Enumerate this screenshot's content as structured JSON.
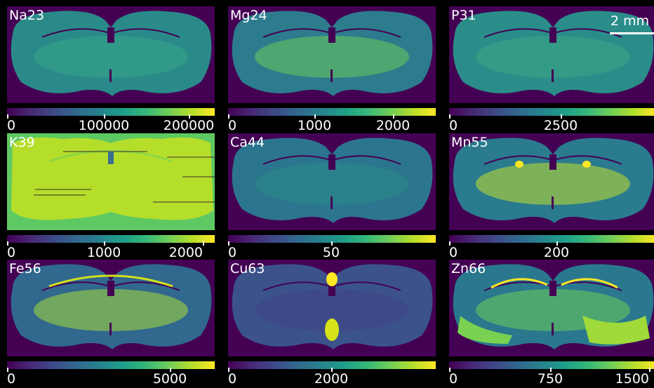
{
  "scale_bar": {
    "label": "2 mm"
  },
  "colormap": "viridis",
  "panels": [
    {
      "element": "Na23",
      "ticks": [
        {
          "label": "0",
          "frac": 0.0
        },
        {
          "label": "100000",
          "frac": 0.47
        },
        {
          "label": "200000",
          "frac": 0.88
        }
      ]
    },
    {
      "element": "Mg24",
      "ticks": [
        {
          "label": "0",
          "frac": 0.0
        },
        {
          "label": "1000",
          "frac": 0.42
        },
        {
          "label": "2000",
          "frac": 0.8
        }
      ]
    },
    {
      "element": "P31",
      "ticks": [
        {
          "label": "0",
          "frac": 0.0
        },
        {
          "label": "2500",
          "frac": 0.54
        }
      ]
    },
    {
      "element": "K39",
      "ticks": [
        {
          "label": "0",
          "frac": 0.0
        },
        {
          "label": "1000",
          "frac": 0.47
        },
        {
          "label": "2000",
          "frac": 0.95
        }
      ]
    },
    {
      "element": "Ca44",
      "ticks": [
        {
          "label": "0",
          "frac": 0.0
        },
        {
          "label": "50",
          "frac": 0.5
        }
      ]
    },
    {
      "element": "Mn55",
      "ticks": [
        {
          "label": "0",
          "frac": 0.0
        },
        {
          "label": "200",
          "frac": 0.52
        }
      ]
    },
    {
      "element": "Fe56",
      "ticks": [
        {
          "label": "0",
          "frac": 0.0
        },
        {
          "label": "5000",
          "frac": 0.79
        }
      ]
    },
    {
      "element": "Cu63",
      "ticks": [
        {
          "label": "0",
          "frac": 0.0
        },
        {
          "label": "2000",
          "frac": 0.5
        }
      ]
    },
    {
      "element": "Zn66",
      "ticks": [
        {
          "label": "0",
          "frac": 0.0
        },
        {
          "label": "750",
          "frac": 0.49
        },
        {
          "label": "1500",
          "frac": 0.97
        }
      ]
    }
  ]
}
